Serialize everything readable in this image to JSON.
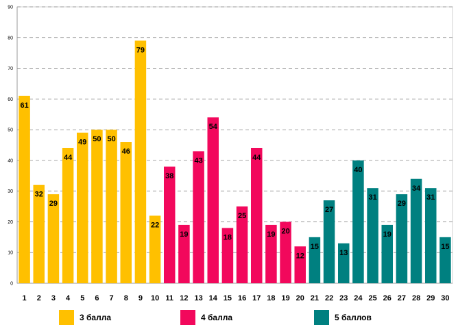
{
  "chart_data": {
    "type": "bar",
    "title": "",
    "xlabel": "",
    "ylabel": "",
    "ylim": [
      0,
      90
    ],
    "yticks": [
      "0",
      "10",
      "20",
      "30",
      "40",
      "50",
      "60",
      "70",
      "80",
      "90"
    ],
    "grid": true,
    "categories": [
      "1",
      "2",
      "3",
      "4",
      "5",
      "6",
      "7",
      "8",
      "9",
      "10",
      "11",
      "12",
      "13",
      "14",
      "15",
      "16",
      "17",
      "18",
      "19",
      "20",
      "21",
      "22",
      "23",
      "24",
      "25",
      "26",
      "27",
      "28",
      "29",
      "30"
    ],
    "values": [
      61,
      32,
      29,
      44,
      49,
      50,
      50,
      46,
      79,
      22,
      38,
      19,
      43,
      54,
      18,
      25,
      44,
      19,
      20,
      12,
      15,
      27,
      13,
      40,
      31,
      19,
      29,
      34,
      31,
      15
    ],
    "series": [
      {
        "name": "3 балла",
        "color": "#FFC000",
        "from": 0,
        "to": 10
      },
      {
        "name": "4 балла",
        "color": "#F2085C",
        "from": 10,
        "to": 20
      },
      {
        "name": "5 баллов",
        "color": "#008080",
        "from": 20,
        "to": 30
      }
    ],
    "legend_position": "bottom"
  }
}
